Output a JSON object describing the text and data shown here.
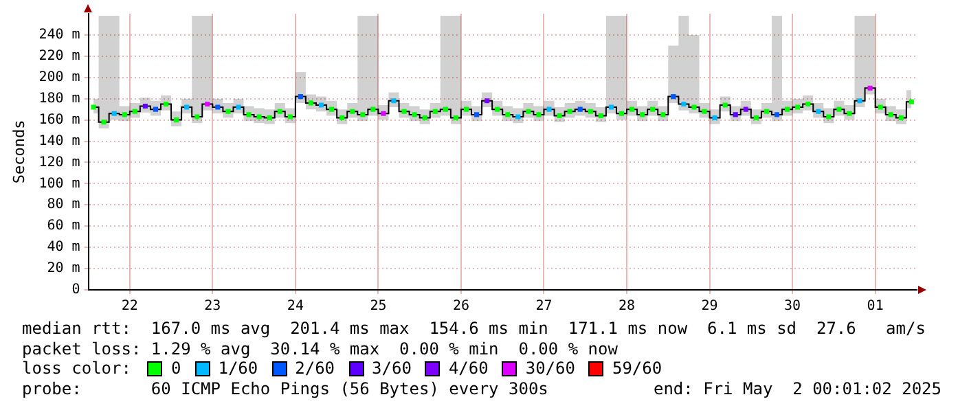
{
  "chart_data": {
    "type": "step",
    "ylabel": "Seconds",
    "legend_title": "loss color:",
    "legend": "bottom",
    "grid": true,
    "marker": "square",
    "xlim": [
      "2025-04-22T00:01",
      "2025-05-02T00:01"
    ],
    "xticks": [
      {
        "value": "2025-04-22T12:00",
        "label": "22"
      },
      {
        "value": "2025-04-23T12:00",
        "label": "23"
      },
      {
        "value": "2025-04-24T12:00",
        "label": "24"
      },
      {
        "value": "2025-04-25T12:00",
        "label": "25"
      },
      {
        "value": "2025-04-26T12:00",
        "label": "26"
      },
      {
        "value": "2025-04-27T12:00",
        "label": "27"
      },
      {
        "value": "2025-04-28T12:00",
        "label": "28"
      },
      {
        "value": "2025-04-29T12:00",
        "label": "29"
      },
      {
        "value": "2025-04-30T12:00",
        "label": "30"
      },
      {
        "value": "2025-05-01T12:00",
        "label": "01"
      }
    ],
    "ylim": [
      0,
      260
    ],
    "yticks": [
      0,
      {
        "value": 20,
        "label": "20 m"
      },
      {
        "value": 40,
        "label": "40 m"
      },
      {
        "value": 60,
        "label": "60 m"
      },
      {
        "value": 80,
        "label": "80 m"
      },
      {
        "value": 100,
        "label": "100 m"
      },
      {
        "value": 120,
        "label": "120 m"
      },
      {
        "value": 140,
        "label": "140 m"
      },
      {
        "value": 160,
        "label": "160 m"
      },
      {
        "value": 180,
        "label": "180 m"
      },
      {
        "value": 200,
        "label": "200 m"
      },
      {
        "value": 220,
        "label": "220 m"
      },
      {
        "value": 240,
        "label": "240 m"
      }
    ],
    "x": [
      "2025-04-22T01:30",
      "2025-04-22T04:30",
      "2025-04-22T07:30",
      "2025-04-22T10:30",
      "2025-04-22T13:30",
      "2025-04-22T16:30",
      "2025-04-22T19:30",
      "2025-04-22T22:30",
      "2025-04-23T01:30",
      "2025-04-23T04:30",
      "2025-04-23T07:30",
      "2025-04-23T10:30",
      "2025-04-23T13:30",
      "2025-04-23T16:30",
      "2025-04-23T19:30",
      "2025-04-23T22:30",
      "2025-04-24T01:30",
      "2025-04-24T04:30",
      "2025-04-24T07:30",
      "2025-04-24T10:30",
      "2025-04-24T13:30",
      "2025-04-24T16:30",
      "2025-04-24T19:30",
      "2025-04-24T22:30",
      "2025-04-25T01:30",
      "2025-04-25T04:30",
      "2025-04-25T07:30",
      "2025-04-25T10:30",
      "2025-04-25T13:30",
      "2025-04-25T16:30",
      "2025-04-25T19:30",
      "2025-04-25T22:30",
      "2025-04-26T01:30",
      "2025-04-26T04:30",
      "2025-04-26T07:30",
      "2025-04-26T10:30",
      "2025-04-26T13:30",
      "2025-04-26T16:30",
      "2025-04-26T19:30",
      "2025-04-26T22:30",
      "2025-04-27T01:30",
      "2025-04-27T04:30",
      "2025-04-27T07:30",
      "2025-04-27T10:30",
      "2025-04-27T13:30",
      "2025-04-27T16:30",
      "2025-04-27T19:30",
      "2025-04-27T22:30",
      "2025-04-28T01:30",
      "2025-04-28T04:30",
      "2025-04-28T07:30",
      "2025-04-28T10:30",
      "2025-04-28T13:30",
      "2025-04-28T16:30",
      "2025-04-28T19:30",
      "2025-04-28T22:30",
      "2025-04-29T01:30",
      "2025-04-29T04:30",
      "2025-04-29T07:30",
      "2025-04-29T10:30",
      "2025-04-29T13:30",
      "2025-04-29T16:30",
      "2025-04-29T19:30",
      "2025-04-29T22:30",
      "2025-04-30T01:30",
      "2025-04-30T04:30",
      "2025-04-30T07:30",
      "2025-04-30T10:30",
      "2025-04-30T13:30",
      "2025-04-30T16:30",
      "2025-04-30T19:30",
      "2025-04-30T22:30",
      "2025-05-01T01:30",
      "2025-05-01T04:30",
      "2025-05-01T07:30",
      "2025-05-01T10:30",
      "2025-05-01T13:30",
      "2025-05-01T16:30",
      "2025-05-01T19:30",
      "2025-05-01T22:30"
    ],
    "series": [
      {
        "color": "#000000",
        "marker": "none",
        "values": [
          172,
          158,
          166,
          165,
          168,
          173,
          170,
          175,
          160,
          172,
          163,
          175,
          172,
          168,
          172,
          165,
          163,
          162,
          168,
          163,
          182,
          176,
          174,
          170,
          162,
          168,
          165,
          170,
          166,
          178,
          168,
          165,
          162,
          168,
          170,
          162,
          170,
          165,
          178,
          170,
          165,
          163,
          168,
          165,
          170,
          164,
          168,
          170,
          168,
          164,
          172,
          166,
          170,
          165,
          170,
          165,
          182,
          175,
          172,
          168,
          162,
          174,
          165,
          170,
          162,
          168,
          165,
          170,
          172,
          175,
          168,
          163,
          170,
          166,
          178,
          190,
          172,
          165,
          162,
          177
        ],
        "upper": [
          180,
          258,
          258,
          173,
          176,
          181,
          178,
          183,
          168,
          180,
          258,
          258,
          180,
          176,
          180,
          173,
          171,
          170,
          176,
          171,
          205,
          184,
          182,
          178,
          170,
          176,
          258,
          258,
          174,
          186,
          176,
          173,
          170,
          176,
          258,
          258,
          178,
          173,
          186,
          178,
          173,
          171,
          176,
          173,
          178,
          172,
          176,
          178,
          176,
          172,
          258,
          258,
          178,
          173,
          178,
          173,
          230,
          258,
          240,
          176,
          170,
          182,
          173,
          178,
          170,
          176,
          258,
          178,
          180,
          183,
          176,
          171,
          178,
          174,
          258,
          258,
          180,
          173,
          170,
          188
        ],
        "lower": [
          166,
          152,
          160,
          159,
          162,
          167,
          164,
          169,
          154,
          166,
          157,
          169,
          166,
          162,
          166,
          159,
          157,
          156,
          162,
          157,
          176,
          170,
          168,
          164,
          156,
          162,
          159,
          164,
          160,
          172,
          162,
          159,
          156,
          162,
          164,
          156,
          164,
          159,
          172,
          164,
          159,
          157,
          162,
          159,
          164,
          158,
          162,
          164,
          162,
          158,
          166,
          160,
          164,
          159,
          164,
          159,
          176,
          169,
          166,
          162,
          156,
          168,
          159,
          164,
          156,
          162,
          159,
          164,
          166,
          169,
          162,
          157,
          164,
          160,
          172,
          184,
          166,
          159,
          156,
          171
        ]
      },
      {
        "type": "scatter",
        "name": "0",
        "color": "#00ff00",
        "values": [
          172,
          158,
          null,
          165,
          168,
          null,
          null,
          175,
          160,
          null,
          163,
          null,
          null,
          168,
          null,
          165,
          163,
          162,
          168,
          163,
          null,
          176,
          null,
          170,
          162,
          168,
          165,
          170,
          null,
          null,
          168,
          165,
          162,
          168,
          170,
          162,
          170,
          null,
          null,
          170,
          165,
          null,
          168,
          165,
          null,
          164,
          168,
          null,
          168,
          164,
          null,
          166,
          170,
          165,
          170,
          165,
          null,
          null,
          172,
          168,
          null,
          174,
          null,
          null,
          162,
          168,
          null,
          170,
          172,
          175,
          null,
          163,
          170,
          166,
          null,
          null,
          172,
          165,
          162,
          177
        ]
      },
      {
        "type": "scatter",
        "name": "1/60",
        "color": "#00b8ff",
        "x": [
          "2025-04-22T07:30",
          "2025-04-23T04:30",
          "2025-04-23T19:30",
          "2025-04-24T19:30",
          "2025-04-25T16:30",
          "2025-04-27T04:30",
          "2025-04-27T13:30",
          "2025-04-28T07:30",
          "2025-04-29T04:30",
          "2025-04-29T13:30",
          "2025-04-30T19:30",
          "2025-05-01T07:30"
        ],
        "values": [
          166,
          172,
          172,
          174,
          178,
          163,
          170,
          172,
          175,
          162,
          168,
          178
        ]
      },
      {
        "type": "scatter",
        "name": "2/60",
        "color": "#0059ff",
        "x": [
          "2025-04-22T19:30",
          "2025-04-23T13:30",
          "2025-04-24T13:30",
          "2025-04-26T16:30",
          "2025-04-27T22:30",
          "2025-04-29T01:30",
          "2025-04-30T07:30"
        ],
        "values": [
          170,
          172,
          182,
          165,
          170,
          182,
          165
        ]
      },
      {
        "type": "scatter",
        "name": "3/60",
        "color": "#5e00ff",
        "x": [
          "2025-04-22T16:30",
          "2025-04-29T19:30"
        ],
        "values": [
          173,
          165
        ]
      },
      {
        "type": "scatter",
        "name": "4/60",
        "color": "#7e00ff",
        "x": [
          "2025-04-26T19:30",
          "2025-04-29T22:30"
        ],
        "values": [
          178,
          170
        ]
      },
      {
        "type": "scatter",
        "name": "30/60",
        "color": "#dd00ff",
        "x": [
          "2025-04-23T10:30",
          "2025-04-25T13:30",
          "2025-05-01T10:30"
        ],
        "values": [
          175,
          166,
          190
        ]
      },
      {
        "type": "scatter",
        "name": "59/60",
        "color": "#ff0000",
        "values": [
          null,
          null,
          null,
          null,
          null,
          null,
          null,
          null,
          null,
          null,
          null,
          null,
          null,
          null,
          null,
          null,
          null,
          null,
          null,
          null,
          null,
          null,
          null,
          null,
          null,
          null,
          null,
          null,
          null,
          null,
          null,
          null,
          null,
          null,
          null,
          null,
          null,
          null,
          null,
          null,
          null,
          null,
          null,
          null,
          null,
          null,
          null,
          null,
          null,
          null,
          null,
          null,
          null,
          null,
          null,
          null,
          null,
          null,
          null,
          null,
          null,
          null,
          null,
          null,
          null,
          null,
          null,
          null,
          null,
          null,
          null,
          null,
          null,
          null,
          null,
          null,
          null,
          null,
          null,
          null
        ]
      }
    ],
    "annotations": [
      "median rtt:  167.0 ms avg  201.4 ms max  154.6 ms min  171.1 ms now  6.1 ms sd  27.6   am/s",
      "packet loss: 1.29 % avg  30.14 % max  0.00 % min  0.00 % now",
      "probe:       60 ICMP Echo Pings (56 Bytes) every 300s",
      "end: Fri May  2 00:01:02 2025"
    ]
  }
}
